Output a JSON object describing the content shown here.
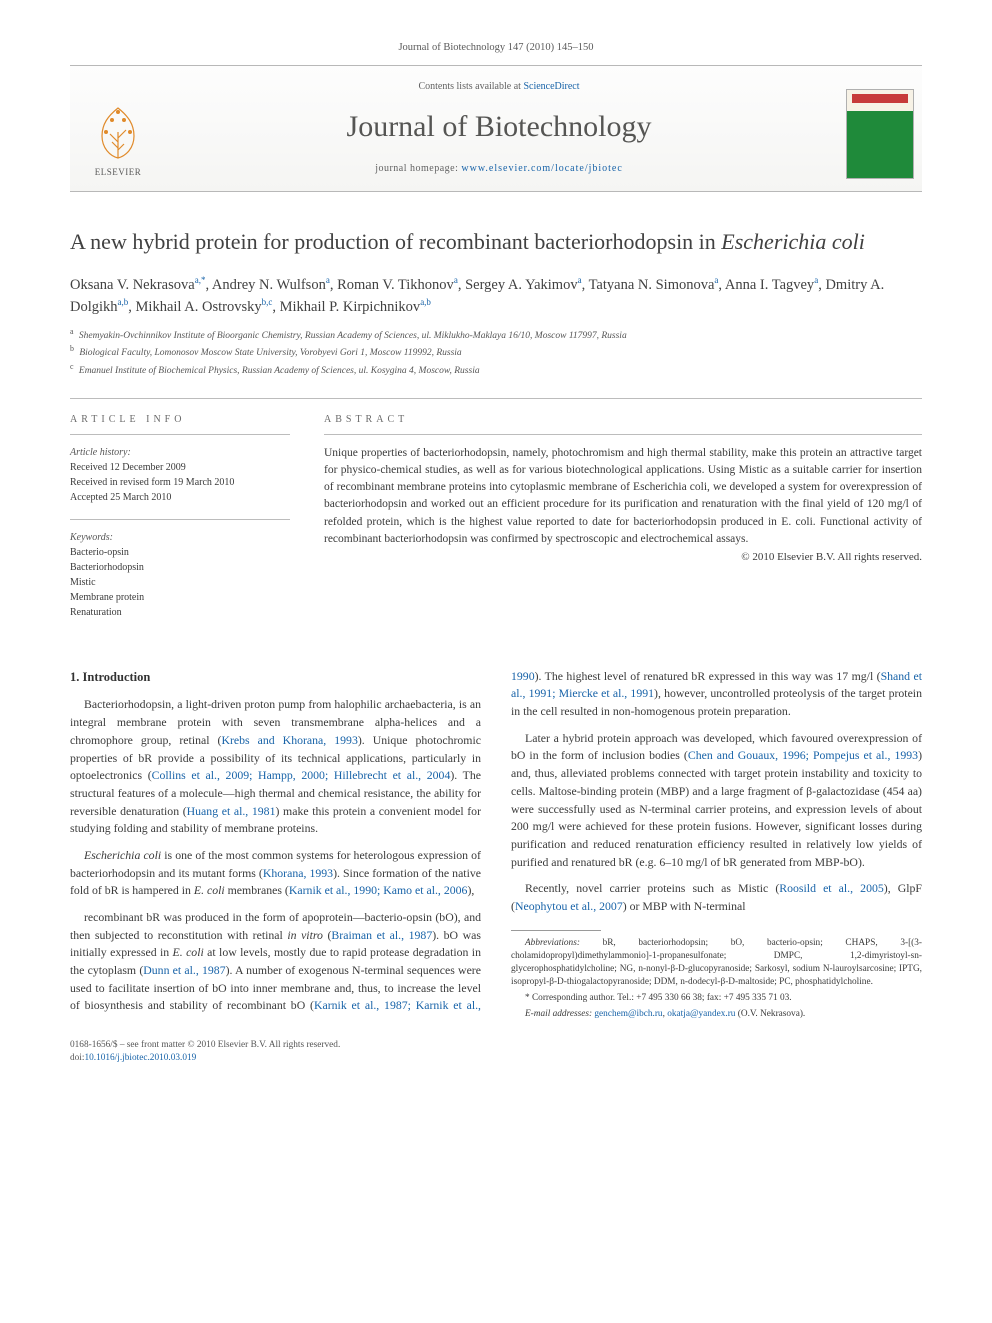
{
  "colors": {
    "link": "#1863a8",
    "text": "#3a3a3a",
    "muted": "#626262",
    "rule": "#bcbcbc",
    "cover_red": "#c73a3a",
    "cover_green": "#1f8a3a",
    "cover_cream": "#f7f2e6"
  },
  "typography": {
    "body_font": "Georgia, 'Times New Roman', serif",
    "title_size_pt": 22,
    "journal_title_size_pt": 30,
    "body_size_pt": 11.8,
    "abstract_size_pt": 11.5,
    "footnote_size_pt": 9.3
  },
  "header": {
    "running": "Journal of Biotechnology 147 (2010) 145–150",
    "contents_prefix": "Contents lists available at ",
    "contents_link": "ScienceDirect",
    "journal_title": "Journal of Biotechnology",
    "homepage_prefix": "journal homepage: ",
    "homepage_url": "www.elsevier.com/locate/jbiotec",
    "publisher_word": "ELSEVIER"
  },
  "article": {
    "title_pre": "A new hybrid protein for production of recombinant bacteriorhodopsin in ",
    "title_species": "Escherichia coli"
  },
  "authors_html": "Oksana V. Nekrasova<sup>a,*</sup>, Andrey N. Wulfson<sup>a</sup>, Roman V. Tikhonov<sup>a</sup>, Sergey A. Yakimov<sup>a</sup>, Tatyana N. Simonova<sup>a</sup>, Anna I. Tagvey<sup>a</sup>, Dmitry A. Dolgikh<sup>a,b</sup>, Mikhail A. Ostrovsky<sup>b,c</sup>, Mikhail P. Kirpichnikov<sup>a,b</sup>",
  "affiliations": [
    {
      "tag": "a",
      "text": "Shemyakin-Ovchinnikov Institute of Bioorganic Chemistry, Russian Academy of Sciences, ul. Miklukho-Maklaya 16/10, Moscow 117997, Russia"
    },
    {
      "tag": "b",
      "text": "Biological Faculty, Lomonosov Moscow State University, Vorobyevi Gori 1, Moscow 119992, Russia"
    },
    {
      "tag": "c",
      "text": "Emanuel Institute of Biochemical Physics, Russian Academy of Sciences, ul. Kosygina 4, Moscow, Russia"
    }
  ],
  "info": {
    "heading": "article info",
    "history_label": "Article history:",
    "history": [
      "Received 12 December 2009",
      "Received in revised form 19 March 2010",
      "Accepted 25 March 2010"
    ],
    "keywords_label": "Keywords:",
    "keywords": [
      "Bacterio-opsin",
      "Bacteriorhodopsin",
      "Mistic",
      "Membrane protein",
      "Renaturation"
    ]
  },
  "abstract": {
    "heading": "abstract",
    "text": "Unique properties of bacteriorhodopsin, namely, photochromism and high thermal stability, make this protein an attractive target for physico-chemical studies, as well as for various biotechnological applications. Using Mistic as a suitable carrier for insertion of recombinant membrane proteins into cytoplasmic membrane of Escherichia coli, we developed a system for overexpression of bacteriorhodopsin and worked out an efficient procedure for its purification and renaturation with the final yield of 120 mg/l of refolded protein, which is the highest value reported to date for bacteriorhodopsin produced in E. coli. Functional activity of recombinant bacteriorhodopsin was confirmed by spectroscopic and electrochemical assays.",
    "copyright": "© 2010 Elsevier B.V. All rights reserved."
  },
  "body": {
    "section_number": "1.",
    "section_title": "Introduction",
    "paragraphs": [
      "Bacteriorhodopsin, a light-driven proton pump from halophilic archaebacteria, is an integral membrane protein with seven transmembrane alpha-helices and a chromophore group, retinal (<a class=\"cite\">Krebs and Khorana, 1993</a>). Unique photochromic properties of bR provide a possibility of its technical applications, particularly in optoelectronics (<a class=\"cite\">Collins et al., 2009; Hampp, 2000; Hillebrecht et al., 2004</a>). The structural features of a molecule—high thermal and chemical resistance, the ability for reversible denaturation (<a class=\"cite\">Huang et al., 1981</a>) make this protein a convenient model for studying folding and stability of membrane proteins.",
      "<span class=\"species\">Escherichia coli</span> is one of the most common systems for heterologous expression of bacteriorhodopsin and its mutant forms (<a class=\"cite\">Khorana, 1993</a>). Since formation of the native fold of bR is hampered in <span class=\"species\">E. coli</span> membranes (<a class=\"cite\">Karnik et al., 1990; Kamo et al., 2006</a>),",
      "recombinant bR was produced in the form of apoprotein—bacterio-opsin (bO), and then subjected to reconstitution with retinal <span class=\"species\">in vitro</span> (<a class=\"cite\">Braiman et al., 1987</a>). bO was initially expressed in <span class=\"species\">E. coli</span> at low levels, mostly due to rapid protease degradation in the cytoplasm (<a class=\"cite\">Dunn et al., 1987</a>). A number of exogenous N-terminal sequences were used to facilitate insertion of bO into inner membrane and, thus, to increase the level of biosynthesis and stability of recombinant bO (<a class=\"cite\">Karnik et al., 1987; Karnik et al., 1990</a>). The highest level of renatured bR expressed in this way was 17 mg/l (<a class=\"cite\">Shand et al., 1991; Miercke et al., 1991</a>), however, uncontrolled proteolysis of the target protein in the cell resulted in non-homogenous protein preparation.",
      "Later a hybrid protein approach was developed, which favoured overexpression of bO in the form of inclusion bodies (<a class=\"cite\">Chen and Gouaux, 1996; Pompejus et al., 1993</a>) and, thus, alleviated problems connected with target protein instability and toxicity to cells. Maltose-binding protein (MBP) and a large fragment of β-galactozidase (454 aa) were successfully used as N-terminal carrier proteins, and expression levels of about 200 mg/l were achieved for these protein fusions. However, significant losses during purification and reduced renaturation efficiency resulted in relatively low yields of purified and renatured bR (e.g. 6–10 mg/l of bR generated from MBP-bO).",
      "Recently, novel carrier proteins such as Mistic (<a class=\"cite\">Roosild et al., 2005</a>), GlpF (<a class=\"cite\">Neophytou et al., 2007</a>) or MBP with N-terminal"
    ]
  },
  "footnotes": {
    "abbrev_label": "Abbreviations:",
    "abbrev_text": "bR, bacteriorhodopsin; bO, bacterio-opsin; CHAPS, 3-[(3-cholamidopropyl)dimethylammonio]-1-propanesulfonate; DMPC, 1,2-dimyristoyl-sn-glycerophosphatidylcholine; NG, n-nonyl-β-D-glucopyranoside; Sarkosyl, sodium N-lauroylsarcosine; IPTG, isopropyl-β-D-thiogalactopyranoside; DDM, n-dodecyl-β-D-maltoside; PC, phosphatidylcholine.",
    "corr_label": "* Corresponding author.",
    "corr_text": "Tel.: +7 495 330 66 38; fax: +7 495 335 71 03.",
    "email_label": "E-mail addresses:",
    "email_1": "genchem@ibch.ru",
    "email_2": "okatja@yandex.ru",
    "email_tail": " (O.V. Nekrasova)."
  },
  "footer": {
    "line1_pre": "0168-1656/$ – see front matter ",
    "line1_copy": "© 2010 Elsevier B.V. All rights reserved.",
    "doi_label": "doi:",
    "doi": "10.1016/j.jbiotec.2010.03.019"
  }
}
